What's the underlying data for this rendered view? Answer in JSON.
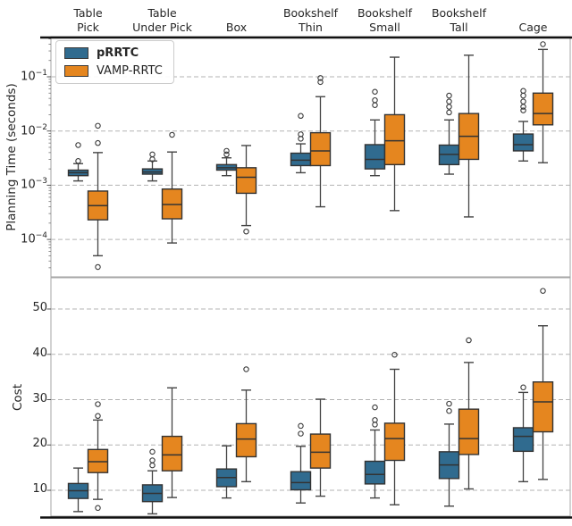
{
  "figure": {
    "legend": {
      "items": [
        {
          "label": "pRRTC",
          "color": "#306b8f",
          "bold": true
        },
        {
          "label": "VAMP-RRTC",
          "color": "#e5861f",
          "bold": false
        }
      ]
    },
    "box_edge_color": "#333333",
    "whisker_color": "#444444",
    "gridline_color": "#b3b3b3"
  },
  "chart_data": [
    {
      "type": "box",
      "ylabel": "Planning Time (seconds)",
      "yscale": "log",
      "ylim": [
        2.2e-05,
        0.5
      ],
      "grid": true,
      "legend_position": "upper left",
      "yticks": [
        {
          "base": "10",
          "exp": "−1",
          "value": 0.1
        },
        {
          "base": "10",
          "exp": "−2",
          "value": 0.01
        },
        {
          "base": "10",
          "exp": "−3",
          "value": 0.001
        },
        {
          "base": "10",
          "exp": "−4",
          "value": 0.0001
        }
      ],
      "categories": [
        [
          "Table",
          "Pick"
        ],
        [
          "Table",
          "Under Pick"
        ],
        [
          "Box"
        ],
        [
          "Bookshelf",
          "Thin"
        ],
        [
          "Bookshelf",
          "Small"
        ],
        [
          "Bookshelf",
          "Tall"
        ],
        [
          "Cage"
        ]
      ],
      "series": [
        {
          "name": "pRRTC",
          "color": "#306b8f",
          "boxes": [
            {
              "whisker_low": 0.0012,
              "q1": 0.0015,
              "median": 0.0017,
              "q3": 0.0019,
              "whisker_high": 0.0025,
              "outliers": [
                0.0055,
                0.0028
              ]
            },
            {
              "whisker_low": 0.0012,
              "q1": 0.0016,
              "median": 0.00175,
              "q3": 0.002,
              "whisker_high": 0.0028,
              "outliers": [
                0.0037,
                0.003
              ]
            },
            {
              "whisker_low": 0.0015,
              "q1": 0.0019,
              "median": 0.0021,
              "q3": 0.0024,
              "whisker_high": 0.0032,
              "outliers": [
                0.0043,
                0.0037
              ]
            },
            {
              "whisker_low": 0.0017,
              "q1": 0.0023,
              "median": 0.0029,
              "q3": 0.0039,
              "whisker_high": 0.0058,
              "outliers": [
                0.019,
                0.0087,
                0.0072
              ]
            },
            {
              "whisker_low": 0.0015,
              "q1": 0.002,
              "median": 0.003,
              "q3": 0.0056,
              "whisker_high": 0.016,
              "outliers": [
                0.053,
                0.037,
                0.03
              ]
            },
            {
              "whisker_low": 0.0016,
              "q1": 0.0024,
              "median": 0.0037,
              "q3": 0.0055,
              "whisker_high": 0.016,
              "outliers": [
                0.045,
                0.035,
                0.028,
                0.022
              ]
            },
            {
              "whisker_low": 0.0028,
              "q1": 0.0043,
              "median": 0.0056,
              "q3": 0.0088,
              "whisker_high": 0.015,
              "outliers": [
                0.055,
                0.045,
                0.035,
                0.028,
                0.024
              ]
            }
          ]
        },
        {
          "name": "VAMP-RRTC",
          "color": "#e5861f",
          "boxes": [
            {
              "whisker_low": 5e-05,
              "q1": 0.00023,
              "median": 0.00042,
              "q3": 0.00078,
              "whisker_high": 0.004,
              "outliers": [
                0.0125,
                0.006,
                3.1e-05
              ]
            },
            {
              "whisker_low": 8.6e-05,
              "q1": 0.00024,
              "median": 0.00044,
              "q3": 0.00085,
              "whisker_high": 0.0041,
              "outliers": [
                0.0085
              ]
            },
            {
              "whisker_low": 0.00018,
              "q1": 0.00071,
              "median": 0.0014,
              "q3": 0.0021,
              "whisker_high": 0.0054,
              "outliers": [
                0.00014
              ]
            },
            {
              "whisker_low": 0.0004,
              "q1": 0.0023,
              "median": 0.0043,
              "q3": 0.0093,
              "whisker_high": 0.043,
              "outliers": [
                0.095,
                0.08
              ]
            },
            {
              "whisker_low": 0.00034,
              "q1": 0.0024,
              "median": 0.0066,
              "q3": 0.02,
              "whisker_high": 0.23,
              "outliers": []
            },
            {
              "whisker_low": 0.00026,
              "q1": 0.003,
              "median": 0.008,
              "q3": 0.021,
              "whisker_high": 0.25,
              "outliers": []
            },
            {
              "whisker_low": 0.0026,
              "q1": 0.013,
              "median": 0.021,
              "q3": 0.05,
              "whisker_high": 0.32,
              "outliers": [
                0.4
              ]
            }
          ]
        }
      ]
    },
    {
      "type": "box",
      "ylabel": "Cost",
      "yscale": "linear",
      "ylim": [
        4,
        57
      ],
      "grid": true,
      "yticks": [
        {
          "label": "50",
          "value": 50
        },
        {
          "label": "40",
          "value": 40
        },
        {
          "label": "30",
          "value": 30
        },
        {
          "label": "20",
          "value": 20
        },
        {
          "label": "10",
          "value": 10
        }
      ],
      "categories": [
        [
          "Table",
          "Pick"
        ],
        [
          "Table",
          "Under Pick"
        ],
        [
          "Box"
        ],
        [
          "Bookshelf",
          "Thin"
        ],
        [
          "Bookshelf",
          "Small"
        ],
        [
          "Bookshelf",
          "Tall"
        ],
        [
          "Cage"
        ]
      ],
      "series": [
        {
          "name": "pRRTC",
          "color": "#306b8f",
          "boxes": [
            {
              "whisker_low": 5.3,
              "q1": 8.2,
              "median": 9.9,
              "q3": 11.5,
              "whisker_high": 14.9,
              "outliers": []
            },
            {
              "whisker_low": 4.8,
              "q1": 7.5,
              "median": 9.3,
              "q3": 11.2,
              "whisker_high": 14.3,
              "outliers": [
                18.5,
                16.6,
                15.5
              ]
            },
            {
              "whisker_low": 8.3,
              "q1": 10.8,
              "median": 12.8,
              "q3": 14.7,
              "whisker_high": 19.8,
              "outliers": []
            },
            {
              "whisker_low": 7.2,
              "q1": 10.1,
              "median": 11.7,
              "q3": 14.1,
              "whisker_high": 19.7,
              "outliers": [
                24.2,
                22.5
              ]
            },
            {
              "whisker_low": 8.3,
              "q1": 11.4,
              "median": 13.5,
              "q3": 16.4,
              "whisker_high": 23.3,
              "outliers": [
                28.3,
                25.5,
                24.5
              ]
            },
            {
              "whisker_low": 6.5,
              "q1": 12.6,
              "median": 15.6,
              "q3": 18.5,
              "whisker_high": 24.6,
              "outliers": [
                29.1,
                27.5
              ]
            },
            {
              "whisker_low": 11.9,
              "q1": 18.6,
              "median": 21.9,
              "q3": 23.8,
              "whisker_high": 31.6,
              "outliers": [
                32.7
              ]
            }
          ]
        },
        {
          "name": "VAMP-RRTC",
          "color": "#e5861f",
          "boxes": [
            {
              "whisker_low": 8.0,
              "q1": 13.9,
              "median": 16.3,
              "q3": 19.0,
              "whisker_high": 25.5,
              "outliers": [
                29.0,
                26.4,
                6.1
              ]
            },
            {
              "whisker_low": 8.4,
              "q1": 14.3,
              "median": 17.8,
              "q3": 21.9,
              "whisker_high": 32.6,
              "outliers": []
            },
            {
              "whisker_low": 11.9,
              "q1": 17.4,
              "median": 21.3,
              "q3": 24.7,
              "whisker_high": 32.1,
              "outliers": [
                36.7
              ]
            },
            {
              "whisker_low": 8.7,
              "q1": 14.9,
              "median": 18.4,
              "q3": 22.4,
              "whisker_high": 30.1,
              "outliers": []
            },
            {
              "whisker_low": 6.8,
              "q1": 16.6,
              "median": 21.4,
              "q3": 24.8,
              "whisker_high": 36.7,
              "outliers": [
                39.9
              ]
            },
            {
              "whisker_low": 10.3,
              "q1": 17.9,
              "median": 21.4,
              "q3": 27.9,
              "whisker_high": 38.2,
              "outliers": [
                43.1
              ]
            },
            {
              "whisker_low": 12.4,
              "q1": 22.9,
              "median": 29.5,
              "q3": 33.9,
              "whisker_high": 46.3,
              "outliers": [
                54.0
              ]
            }
          ]
        }
      ]
    }
  ]
}
